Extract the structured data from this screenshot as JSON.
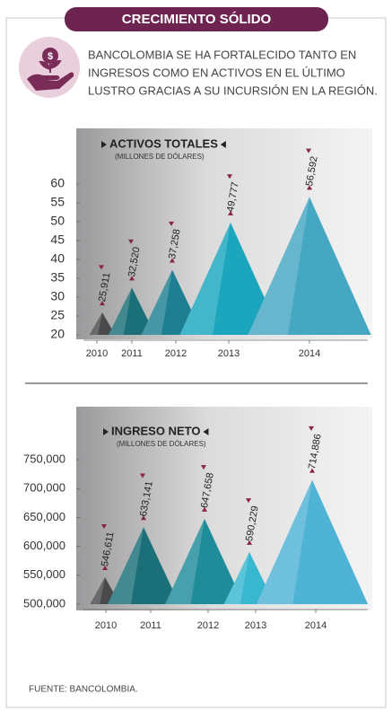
{
  "header": {
    "title": "CRECIMIENTO SÓLIDO"
  },
  "intro": [
    "BANCOLOMBIA  SE HA FORTALECIDO TANTO EN",
    "INGRESOS COMO EN ACTIVOS EN EL ÚLTIMO",
    "LUSTRO GRACIAS A SU INCURSIÓN EN LA REGIÓN."
  ],
  "chart_data": [
    {
      "type": "triangle",
      "title": "ACTIVOS TOTALES",
      "subtitle": "(MILLONES DE DÓLARES)",
      "categories": [
        "2010",
        "2011",
        "2012",
        "2013",
        "2014"
      ],
      "values": [
        25.911,
        32.52,
        37.258,
        49.777,
        56.592
      ],
      "value_labels": [
        "25,911",
        "32,520",
        "37,258",
        "49,777",
        "56,592"
      ],
      "colors": [
        "#4a4a4c",
        "#1a6f78",
        "#1f7f92",
        "#1ba6be",
        "#45a7c2"
      ],
      "ylim": [
        20,
        60
      ],
      "yticks": [
        20,
        25,
        30,
        35,
        40,
        45,
        50,
        55,
        60
      ]
    },
    {
      "type": "triangle",
      "title": "INGRESO NETO",
      "subtitle": "(MILLONES DE DÓLARES)",
      "categories": [
        "2010",
        "2011",
        "2012",
        "2013",
        "2014"
      ],
      "values": [
        546611,
        633141,
        647658,
        590229,
        714886
      ],
      "value_labels": [
        "546,611",
        "633,141",
        "647,658",
        "590,229",
        "714,886"
      ],
      "colors": [
        "#4a4a4c",
        "#1a6f78",
        "#1f8c99",
        "#38b7d0",
        "#4fb3d6"
      ],
      "ylim": [
        500000,
        750000
      ],
      "yticks": [
        {
          "value": 500000,
          "label": "500,000"
        },
        {
          "value": 550000,
          "label": "550,000"
        },
        {
          "value": 600000,
          "label": "600,000"
        },
        {
          "value": 650000,
          "label": "650,000"
        },
        {
          "value": 700000,
          "label": "700,000"
        },
        {
          "value": 750000,
          "label": "750,000"
        }
      ]
    }
  ],
  "footer": "FUENTE: BANCOLOMBIA."
}
